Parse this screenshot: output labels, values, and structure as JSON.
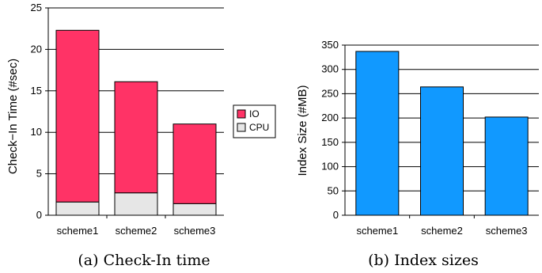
{
  "chart_data": [
    {
      "type": "bar",
      "stacked": true,
      "categories": [
        "scheme1",
        "scheme2",
        "scheme3"
      ],
      "series": [
        {
          "name": "CPU",
          "values": [
            1.6,
            2.7,
            1.4
          ],
          "color": "#e6e6e6"
        },
        {
          "name": "IO",
          "values": [
            20.7,
            13.4,
            9.6
          ],
          "color": "#ff3366"
        }
      ],
      "ylabel": "Check−In Time (#sec)",
      "ylim": [
        0,
        25
      ],
      "yticks": [
        0,
        5,
        10,
        15,
        20,
        25
      ],
      "grid": true,
      "legend": [
        "IO",
        "CPU"
      ],
      "legend_position": "right",
      "caption": "(a) Check-In time"
    },
    {
      "type": "bar",
      "categories": [
        "scheme1",
        "scheme2",
        "scheme3"
      ],
      "values": [
        337,
        264,
        202
      ],
      "color": "#1199ff",
      "ylabel": "Index Size (#MB)",
      "ylim": [
        0,
        350
      ],
      "yticks": [
        0,
        50,
        100,
        150,
        200,
        250,
        300,
        350
      ],
      "grid": true,
      "caption": "(b) Index sizes"
    }
  ]
}
